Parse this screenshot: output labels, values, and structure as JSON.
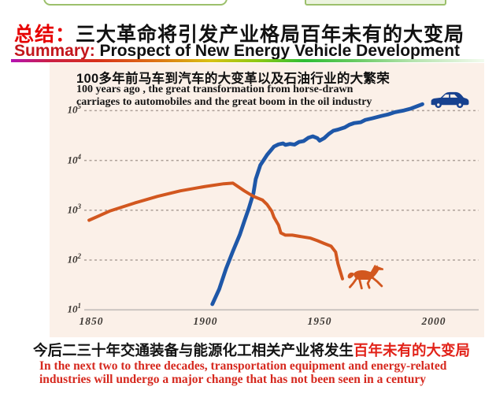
{
  "header": {
    "title_prefix": "总结：",
    "title_main": "三大革命将引发产业格局百年未有的大变局",
    "subtitle_prefix": "Summary:",
    "subtitle_main": "Prospect of New Energy Vehicle Development"
  },
  "chart": {
    "title_cn": "100多年前马车到汽车的大变革以及石油行业的大繁荣",
    "title_en_line1": "100 years ago , the great transformation from horse-drawn",
    "title_en_line2": "carriages to automobiles and the great boom in the oil industry",
    "colors": {
      "background": "#fbf0e8",
      "car_line": "#1e57a8",
      "car_icon": "#17418f",
      "horse_line": "#d2571f",
      "horse_icon": "#d2571f",
      "grid": "#ada099",
      "axis": "#c9c3bf",
      "tick_text": "#3c3733"
    }
  },
  "chart_data": {
    "type": "line",
    "title": "100多年前马车到汽车的大变革以及石油行业的大繁荣",
    "subtitle": "100 years ago , the great transformation from horse-drawn carriages to automobiles and the great boom in the oil industry",
    "x_axis": {
      "ticks": [
        "1850",
        "1900",
        "1950",
        "2000"
      ]
    },
    "y_axis": {
      "scale": "log",
      "base": "10",
      "tick_exponents": [
        1,
        2,
        3,
        4,
        5
      ]
    },
    "series": [
      {
        "name": "automobiles",
        "color": "#1e57a8",
        "points": [
          [
            1903,
            13
          ],
          [
            1906,
            26
          ],
          [
            1909,
            67
          ],
          [
            1912,
            150
          ],
          [
            1915,
            320
          ],
          [
            1917,
            600
          ],
          [
            1919,
            1100
          ],
          [
            1921,
            2200
          ],
          [
            1922,
            4200
          ],
          [
            1924,
            8000
          ],
          [
            1927,
            13000
          ],
          [
            1930,
            19000
          ],
          [
            1932,
            21000
          ],
          [
            1934,
            22000
          ],
          [
            1935,
            20500
          ],
          [
            1937,
            21500
          ],
          [
            1939,
            20800
          ],
          [
            1941,
            23500
          ],
          [
            1943,
            24500
          ],
          [
            1945,
            28500
          ],
          [
            1947,
            30500
          ],
          [
            1949,
            28000
          ],
          [
            1950,
            25000
          ],
          [
            1952,
            28000
          ],
          [
            1954,
            34000
          ],
          [
            1956,
            39500
          ],
          [
            1958,
            41500
          ],
          [
            1961,
            46000
          ],
          [
            1963,
            52000
          ],
          [
            1965,
            56000
          ],
          [
            1968,
            58500
          ],
          [
            1970,
            65000
          ],
          [
            1973,
            70000
          ],
          [
            1977,
            78000
          ],
          [
            1980,
            84000
          ],
          [
            1983,
            93000
          ],
          [
            1987,
            101000
          ],
          [
            1990,
            110000
          ],
          [
            1995,
            135000
          ]
        ]
      },
      {
        "name": "horse-drawn carriages",
        "color": "#d2571f",
        "points": [
          [
            1849,
            630
          ],
          [
            1858,
            960
          ],
          [
            1869,
            1400
          ],
          [
            1879,
            1900
          ],
          [
            1889,
            2450
          ],
          [
            1900,
            3000
          ],
          [
            1908,
            3400
          ],
          [
            1912,
            3500
          ],
          [
            1917,
            2450
          ],
          [
            1921,
            1900
          ],
          [
            1925,
            1600
          ],
          [
            1927,
            1300
          ],
          [
            1929,
            960
          ],
          [
            1930,
            720
          ],
          [
            1932,
            500
          ],
          [
            1933,
            350
          ],
          [
            1935,
            316
          ],
          [
            1938,
            316
          ],
          [
            1942,
            295
          ],
          [
            1946,
            275
          ],
          [
            1949,
            245
          ],
          [
            1952,
            215
          ],
          [
            1955,
            190
          ],
          [
            1957,
            145
          ],
          [
            1958,
            85
          ],
          [
            1960,
            42
          ]
        ]
      }
    ]
  },
  "footer": {
    "cn_black": "今后二三十年交通装备与能源化工相关产业将发生",
    "cn_red": "百年未有的大变局",
    "en_line1": "In the next two to three decades, transportation equipment and energy-related",
    "en_line2": "industries will undergo a major change that has not been seen in a century"
  }
}
